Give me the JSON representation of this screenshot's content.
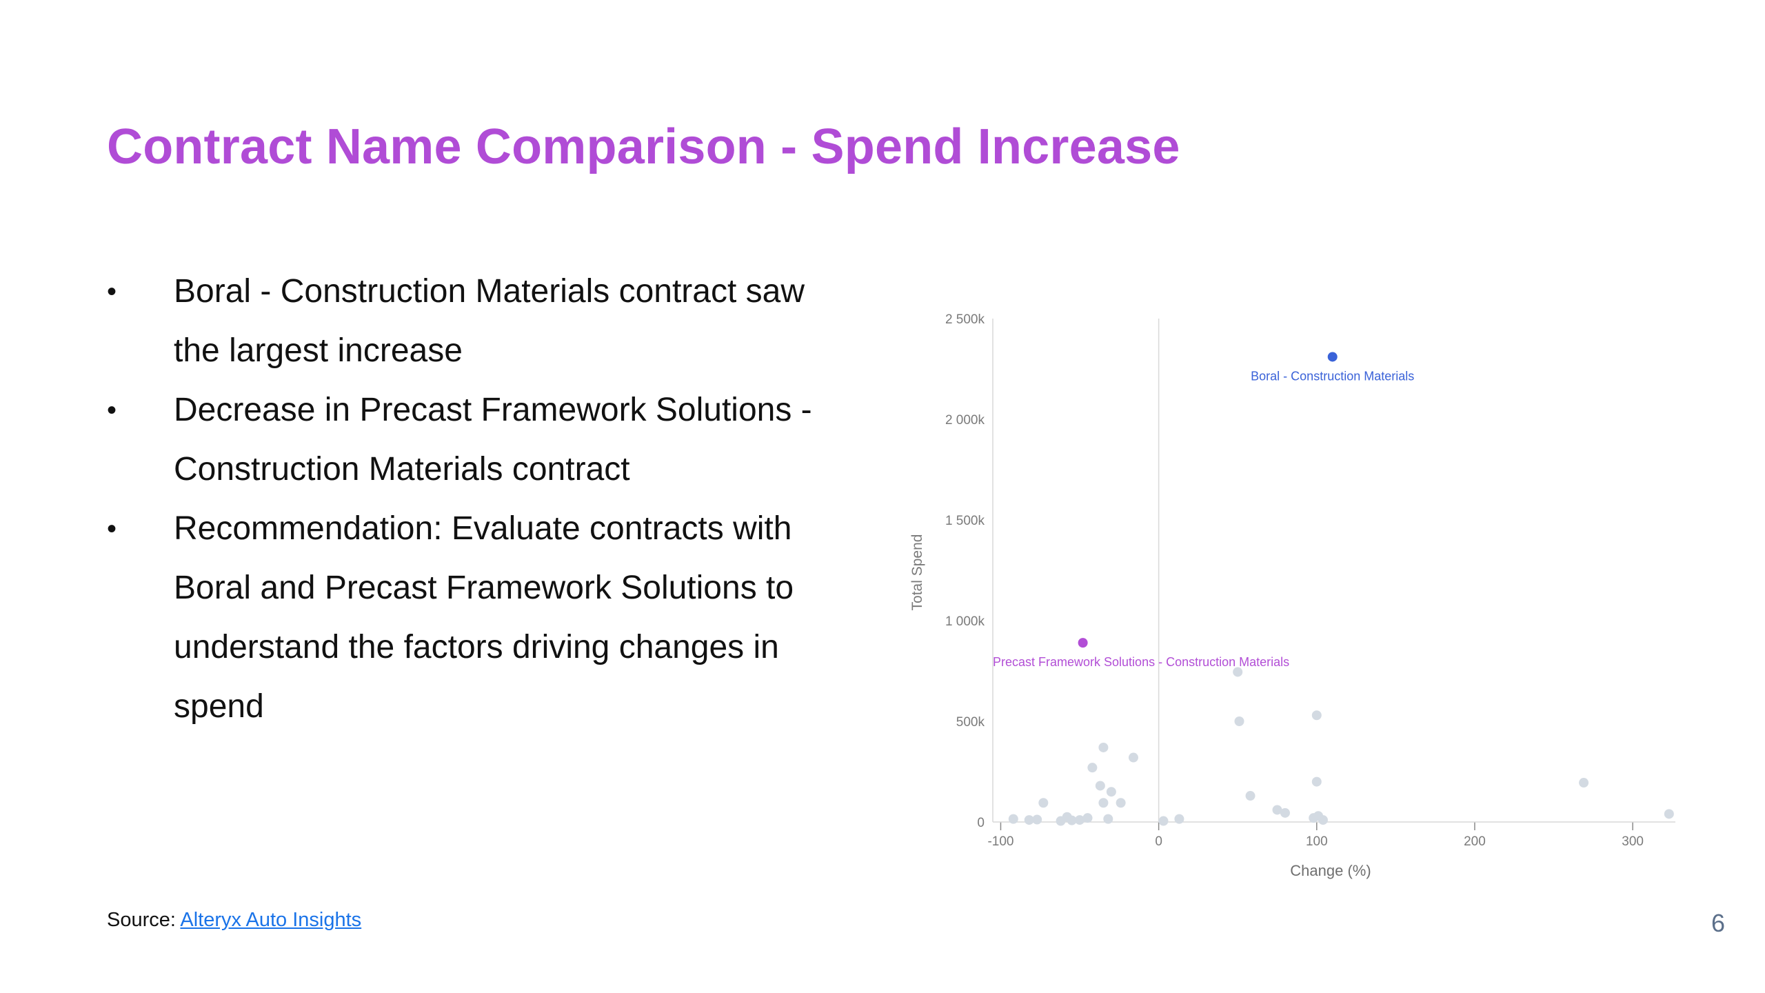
{
  "slide": {
    "title": "Contract Name Comparison - Spend Increase",
    "bullets": [
      "Boral - Construction Materials contract saw the largest increase",
      "Decrease in Precast Framework Solutions - Construction Materials contract",
      "Recommendation: Evaluate contracts with Boral and Precast Framework Solutions to understand the factors driving changes in spend"
    ],
    "bullet_symbol": "•",
    "source_label": "Source:",
    "source_link": "Alteryx Auto Insights",
    "page_number": "6"
  },
  "colors": {
    "title": "#b04cd6",
    "highlight_blue": "#3a62d8",
    "highlight_purple": "#b24ed6",
    "other_points": "#d3dae2",
    "link": "#1a73e8"
  },
  "chart_data": {
    "type": "scatter",
    "xlabel": "Change (%)",
    "ylabel": "Total Spend",
    "xlim": [
      -105,
      327
    ],
    "ylim": [
      0,
      2500000
    ],
    "x_ticks": [
      -100,
      0,
      100,
      200,
      300
    ],
    "x_tick_labels": [
      "-100",
      "0",
      "100",
      "200",
      "300"
    ],
    "y_ticks": [
      0,
      500000,
      1000000,
      1500000,
      2000000,
      2500000
    ],
    "y_tick_labels": [
      "0",
      "500k",
      "1 000k",
      "1 500k",
      "2 000k",
      "2 500k"
    ],
    "grid": false,
    "highlighted": [
      {
        "label": "Boral - Construction Materials",
        "x": 110,
        "y": 2310000,
        "color": "#3a62d8"
      },
      {
        "label": "Precast Framework Solutions - Construction Materials",
        "x": -48,
        "y": 890000,
        "color": "#b24ed6"
      }
    ],
    "points": [
      {
        "x": -92,
        "y": 15000
      },
      {
        "x": -82,
        "y": 10000
      },
      {
        "x": -77,
        "y": 12000
      },
      {
        "x": -73,
        "y": 95000
      },
      {
        "x": -62,
        "y": 5000
      },
      {
        "x": -58,
        "y": 25000
      },
      {
        "x": -55,
        "y": 8000
      },
      {
        "x": -50,
        "y": 10000
      },
      {
        "x": -45,
        "y": 20000
      },
      {
        "x": -42,
        "y": 270000
      },
      {
        "x": -37,
        "y": 180000
      },
      {
        "x": -35,
        "y": 370000
      },
      {
        "x": -35,
        "y": 95000
      },
      {
        "x": -32,
        "y": 15000
      },
      {
        "x": -30,
        "y": 150000
      },
      {
        "x": -24,
        "y": 95000
      },
      {
        "x": -16,
        "y": 320000
      },
      {
        "x": 3,
        "y": 5000
      },
      {
        "x": 13,
        "y": 15000
      },
      {
        "x": 50,
        "y": 745000
      },
      {
        "x": 51,
        "y": 500000
      },
      {
        "x": 58,
        "y": 130000
      },
      {
        "x": 75,
        "y": 60000
      },
      {
        "x": 80,
        "y": 45000
      },
      {
        "x": 98,
        "y": 20000
      },
      {
        "x": 100,
        "y": 530000
      },
      {
        "x": 100,
        "y": 200000
      },
      {
        "x": 101,
        "y": 30000
      },
      {
        "x": 104,
        "y": 10000
      },
      {
        "x": 269,
        "y": 195000
      },
      {
        "x": 323,
        "y": 40000
      }
    ]
  }
}
